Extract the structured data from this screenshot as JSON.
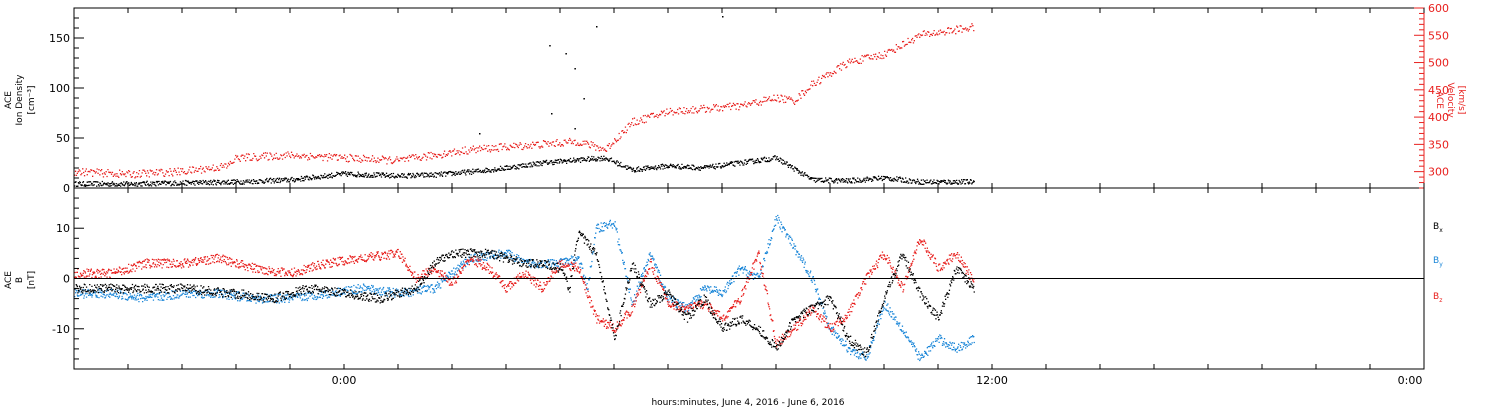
{
  "footer": {
    "xlabel": "hours:minutes, June  4, 2016 - June  6, 2016"
  },
  "chart_data": [
    {
      "type": "scatter",
      "panel": "plasma",
      "ylabel": [
        "ACE",
        "Ion Density",
        "[cm⁻³]"
      ],
      "y2label": [
        "ACE",
        "Velocity",
        "[km/s]"
      ],
      "ylim": [
        0,
        180
      ],
      "y2lim": [
        270,
        600
      ],
      "yticks": [
        0,
        50,
        100,
        150
      ],
      "y2ticks": [
        300,
        350,
        400,
        450,
        500,
        550,
        600
      ],
      "xlim": [
        -15,
        60
      ],
      "colors": {
        "density": "#000000",
        "velocity": "#e8201e"
      },
      "series": [
        {
          "name": "",
          "axis": "left",
          "color": "#000000",
          "x": [
            -15,
            -12,
            -9,
            -6,
            -3,
            0,
            3,
            5,
            7,
            9,
            11,
            13,
            14.5,
            16,
            18,
            20,
            22,
            24,
            26,
            28,
            30,
            32,
            34,
            35
          ],
          "y": [
            4,
            4,
            5,
            6,
            8,
            14,
            12,
            13,
            16,
            20,
            25,
            28,
            30,
            18,
            22,
            20,
            25,
            30,
            8,
            7,
            10,
            6,
            6,
            6
          ]
        },
        {
          "name": "",
          "axis": "right",
          "color": "#e8201e",
          "x": [
            -15,
            -12,
            -9,
            -6.5,
            -6,
            -3,
            0,
            3,
            5,
            7,
            9,
            11,
            13,
            14.5,
            16,
            18,
            20,
            22,
            24,
            25,
            26,
            28,
            30,
            32,
            34,
            35
          ],
          "y": [
            300,
            295,
            300,
            310,
            325,
            330,
            325,
            320,
            330,
            340,
            345,
            350,
            355,
            340,
            390,
            410,
            415,
            420,
            435,
            430,
            460,
            500,
            515,
            550,
            560,
            565
          ]
        }
      ],
      "spikes": [
        {
          "x": 14,
          "y": 162
        },
        {
          "x": 21,
          "y": 172
        },
        {
          "x": 11.4,
          "y": 143
        },
        {
          "x": 12.3,
          "y": 135
        },
        {
          "x": 12.8,
          "y": 120
        },
        {
          "x": 13.3,
          "y": 90
        },
        {
          "x": 11.5,
          "y": 75
        },
        {
          "x": 12.8,
          "y": 60
        },
        {
          "x": 7.5,
          "y": 55
        }
      ]
    },
    {
      "type": "scatter",
      "panel": "field",
      "ylabel": [
        "ACE",
        "B",
        "[nT]"
      ],
      "ylim": [
        -18,
        18
      ],
      "yticks": [
        -10,
        0,
        10
      ],
      "xlim": [
        -15,
        60
      ],
      "xticks": [
        -15,
        -12,
        -9,
        -6,
        -3,
        0,
        3,
        6,
        9,
        12,
        15,
        18,
        21,
        24,
        27,
        30,
        33,
        36,
        39,
        42,
        45,
        48,
        51,
        54,
        57,
        60
      ],
      "xtick_labels": {
        "0": "0:00",
        "36": "12:00",
        "72": "0:00"
      },
      "legend": [
        "Bx",
        "By",
        "Bz"
      ],
      "series": [
        {
          "name": "Bx",
          "color": "#000000",
          "x": [
            -15,
            -12,
            -9,
            -6,
            -4,
            -2,
            0,
            2,
            4,
            5,
            6,
            8,
            10,
            11,
            12,
            12.5,
            13,
            14,
            15,
            16,
            17,
            18,
            19,
            20,
            21,
            22,
            23,
            24,
            25,
            26,
            27,
            28,
            29,
            30,
            31,
            32,
            33,
            34,
            35
          ],
          "y": [
            -2,
            -2,
            -2,
            -3,
            -4,
            -2,
            -3,
            -4,
            -2,
            3,
            5,
            5,
            3,
            3,
            2,
            -2,
            9,
            5,
            -12,
            3,
            -5,
            -3,
            -8,
            -4,
            -10,
            -8,
            -10,
            -14,
            -8,
            -6,
            -4,
            -12,
            -15,
            -4,
            5,
            -3,
            -8,
            2,
            -2
          ]
        },
        {
          "name": "By",
          "color": "#1a86d8",
          "x": [
            -15,
            -13,
            -11,
            -9,
            -7,
            -5,
            -3,
            -1,
            1,
            3,
            5,
            7,
            9,
            10,
            11,
            12,
            13,
            13.5,
            14,
            15,
            16,
            17,
            18,
            19,
            20,
            21,
            22,
            23,
            24,
            25,
            26,
            27,
            28,
            29,
            30,
            31,
            32,
            33,
            34,
            35
          ],
          "y": [
            -3,
            -3,
            -4,
            -3,
            -3,
            -4,
            -4,
            -3,
            -2,
            -3,
            -2,
            4,
            5,
            3,
            3,
            3,
            4,
            -2,
            10,
            11,
            -5,
            5,
            -4,
            -6,
            -2,
            -3,
            2,
            0,
            12,
            6,
            0,
            -10,
            -14,
            -16,
            -5,
            -10,
            -16,
            -12,
            -14,
            -12
          ]
        },
        {
          "name": "Bz",
          "color": "#e8201e",
          "x": [
            -15,
            -13,
            -11,
            -9,
            -7,
            -5,
            -3,
            -1,
            1,
            3,
            4,
            5,
            6,
            7,
            8,
            9,
            10,
            11,
            12,
            13,
            14,
            15,
            16,
            17,
            18,
            19,
            20,
            21,
            22,
            23,
            24,
            25,
            26,
            27,
            28,
            29,
            30,
            31,
            32,
            33,
            34,
            35
          ],
          "y": [
            1,
            1,
            3,
            3,
            4,
            2,
            1,
            3,
            4,
            5,
            0,
            2,
            -1,
            4,
            2,
            -2,
            1,
            -2,
            3,
            2,
            -8,
            -10,
            -6,
            3,
            -5,
            -6,
            -5,
            -8,
            -4,
            5,
            -13,
            -10,
            -6,
            -10,
            -7,
            0,
            5,
            -2,
            8,
            2,
            5,
            -1
          ]
        }
      ]
    }
  ]
}
